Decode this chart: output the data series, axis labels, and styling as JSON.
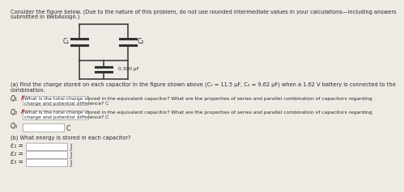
{
  "background_color": "#eeeae4",
  "title_line1": "Consider the figure below. (Due to the nature of this problem, do not use rounded intermediate values in your calculations—including answers",
  "title_line2": "submitted in WebAssign.)",
  "title_fontsize": 4.8,
  "c1_label": "C₁",
  "c2_label": "C₂",
  "c3_label": "0.300 μF",
  "part_a_line1": "(a) Find the charge stored on each capacitor in the figure shown above (C₁ = 11.5 μF, C₂ = 9.62 μF) when a 1.62 V battery is connected to the",
  "part_a_line2": "combination.",
  "part_a_fontsize": 4.8,
  "q1_label": "Q₁",
  "q1_sub": "=",
  "q1_hint_line1": "What is the total charge stored in the equivalent capacitor? What are the properties of series and parallel combination of capacitors regarding",
  "q1_hint_line2": "charge and potential difference? C",
  "q2_label": "Q₂",
  "q2_sub": "=",
  "q2_hint_line1": "What is the total charge stored in the equivalent capacitor? What are the properties of series and parallel combination of capacitors regarding",
  "q2_hint_line2": "charge and potential difference? C",
  "q3_label": "Q₃",
  "q3_sub": "=",
  "q3_unit": "C",
  "part_b_text": "(b) What energy is stored in each capacitor?",
  "e1_label": "ε₁ =",
  "e2_label": "ε₂ =",
  "e3_label": "ε₃ =",
  "e_unit": "J",
  "hint_fontsize": 4.3,
  "label_fontsize": 5.5,
  "small_fontsize": 4.8,
  "x_mark_color": "#bb0000",
  "text_color": "#2a2a2a",
  "line_color": "#333333",
  "box_edge_color": "#999999",
  "box_face_color": "#ffffff"
}
